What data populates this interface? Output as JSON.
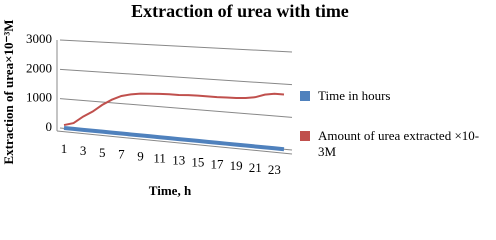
{
  "chart_data": {
    "type": "line",
    "title": "Extraction of urea with time",
    "x_label": "Time, h",
    "y_label": "Extraction of urea×10⁻³M",
    "categories": [
      "1",
      null,
      "3",
      null,
      "5",
      null,
      "7",
      null,
      "9",
      null,
      "11",
      null,
      "13",
      null,
      "15",
      null,
      "17",
      null,
      "19",
      null,
      "21",
      null,
      "23",
      null
    ],
    "series": [
      {
        "name": "Time in hours",
        "color": "#4f81bd",
        "values": [
          1,
          2,
          3,
          4,
          5,
          6,
          7,
          8,
          9,
          10,
          11,
          12,
          13,
          14,
          15,
          16,
          17,
          18,
          19,
          20,
          21,
          22,
          23,
          24
        ]
      },
      {
        "name": "Amount of urea extracted ×10-3M",
        "color": "#c0504d",
        "values": [
          100,
          200,
          450,
          650,
          900,
          1100,
          1250,
          1330,
          1380,
          1400,
          1420,
          1430,
          1430,
          1450,
          1460,
          1460,
          1460,
          1470,
          1480,
          1500,
          1550,
          1650,
          1700,
          1700
        ]
      }
    ],
    "ylim": [
      0,
      3000
    ],
    "yticks": [
      0,
      1000,
      2000,
      3000
    ],
    "grid": true,
    "legend": "right"
  }
}
